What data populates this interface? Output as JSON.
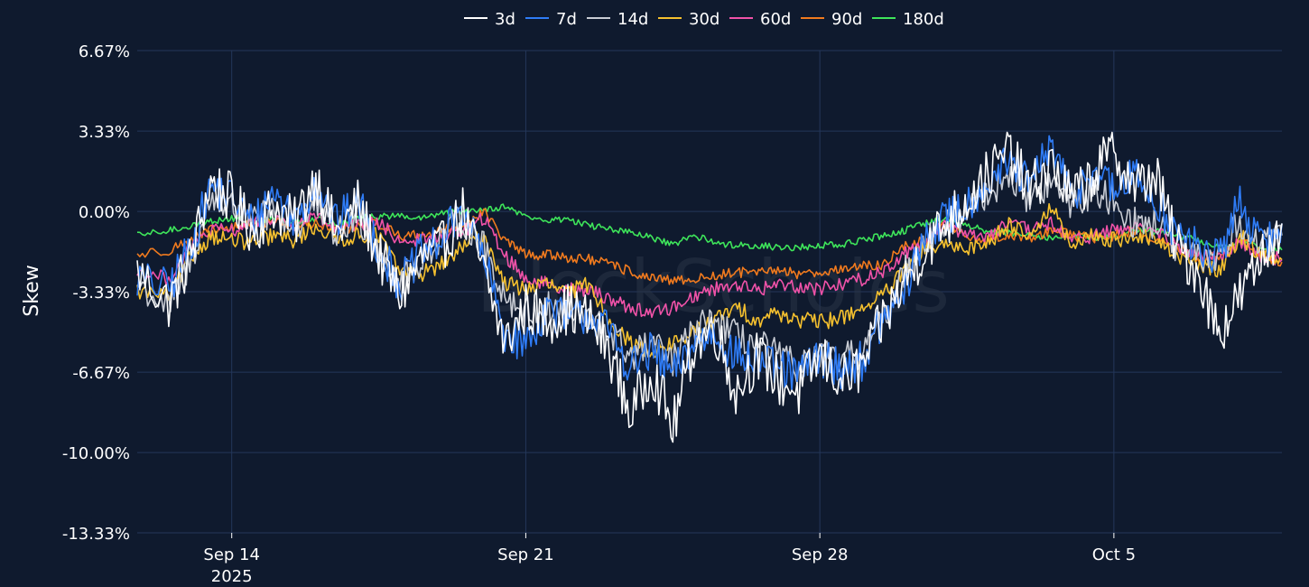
{
  "watermark": "BlockScholes",
  "chart_data": {
    "type": "line",
    "ylabel": "Skew",
    "y_ticks": [
      6.67,
      3.33,
      0,
      -3.33,
      -6.67,
      -10,
      -13.33
    ],
    "y_tick_labels": [
      "6.67%",
      "3.33%",
      "0.00%",
      "-3.33%",
      "-6.67%",
      "-10.00%",
      "-13.33%"
    ],
    "ylim": [
      -13.33,
      6.67
    ],
    "x_range": [
      "2025-09-11T18:00",
      "2025-10-09T00:00"
    ],
    "x_ticks": [
      "2025-09-14",
      "2025-09-21",
      "2025-09-28",
      "2025-10-05"
    ],
    "x_tick_labels": [
      "Sep 14",
      "Sep 21",
      "Sep 28",
      "Oct 5"
    ],
    "x_tick_sublabels": [
      "2025",
      "",
      "",
      ""
    ],
    "grid": true,
    "legend_position": "top-center",
    "x": [
      "2025-09-11T18:00",
      "2025-09-12T12:00",
      "2025-09-13T00:00",
      "2025-09-13T12:00",
      "2025-09-14T00:00",
      "2025-09-14T12:00",
      "2025-09-15T00:00",
      "2025-09-15T12:00",
      "2025-09-16T00:00",
      "2025-09-16T12:00",
      "2025-09-17T00:00",
      "2025-09-17T12:00",
      "2025-09-18T00:00",
      "2025-09-18T12:00",
      "2025-09-19T00:00",
      "2025-09-19T12:00",
      "2025-09-20T00:00",
      "2025-09-20T12:00",
      "2025-09-21T00:00",
      "2025-09-21T12:00",
      "2025-09-22T00:00",
      "2025-09-22T12:00",
      "2025-09-23T00:00",
      "2025-09-23T12:00",
      "2025-09-24T00:00",
      "2025-09-24T12:00",
      "2025-09-25T00:00",
      "2025-09-25T12:00",
      "2025-09-26T00:00",
      "2025-09-26T12:00",
      "2025-09-27T00:00",
      "2025-09-27T12:00",
      "2025-09-28T00:00",
      "2025-09-28T12:00",
      "2025-09-29T00:00",
      "2025-09-29T12:00",
      "2025-09-30T00:00",
      "2025-09-30T12:00",
      "2025-10-01T00:00",
      "2025-10-01T12:00",
      "2025-10-02T00:00",
      "2025-10-02T12:00",
      "2025-10-03T00:00",
      "2025-10-03T12:00",
      "2025-10-04T00:00",
      "2025-10-04T12:00",
      "2025-10-05T00:00",
      "2025-10-05T12:00",
      "2025-10-06T00:00",
      "2025-10-06T12:00",
      "2025-10-07T00:00",
      "2025-10-07T12:00",
      "2025-10-08T00:00",
      "2025-10-08T12:00",
      "2025-10-09T00:00"
    ],
    "series": [
      {
        "name": "3d",
        "color": "#ffffff",
        "values": [
          -2.5,
          -3.8,
          -2.0,
          1.2,
          0.5,
          -0.8,
          0.2,
          -0.5,
          1.5,
          -1.0,
          0.3,
          -1.8,
          -3.5,
          -2.0,
          -1.5,
          0.0,
          -2.5,
          -5.5,
          -4.0,
          -4.5,
          -4.0,
          -4.5,
          -5.8,
          -8.5,
          -6.5,
          -9.0,
          -5.5,
          -4.8,
          -7.5,
          -6.0,
          -7.0,
          -7.5,
          -6.0,
          -7.0,
          -6.5,
          -4.5,
          -3.0,
          -1.5,
          -0.5,
          0.5,
          1.5,
          2.5,
          0.8,
          2.0,
          0.5,
          1.5,
          2.5,
          1.0,
          1.5,
          -1.5,
          -2.5,
          -5.0,
          -3.5,
          -2.0,
          -0.5
        ]
      },
      {
        "name": "7d",
        "color": "#2f7cf6",
        "values": [
          -2.8,
          -3.2,
          -1.5,
          1.0,
          0.6,
          -0.5,
          0.8,
          -0.3,
          1.2,
          -0.5,
          0.5,
          -1.5,
          -3.0,
          -1.8,
          -1.2,
          0.2,
          -2.0,
          -5.0,
          -5.5,
          -4.0,
          -4.5,
          -4.2,
          -5.0,
          -6.5,
          -5.8,
          -6.8,
          -5.5,
          -5.0,
          -6.0,
          -6.2,
          -6.5,
          -6.8,
          -6.0,
          -6.5,
          -6.2,
          -4.5,
          -3.5,
          -1.0,
          -0.3,
          0.3,
          1.2,
          2.0,
          1.0,
          2.8,
          0.5,
          1.8,
          0.8,
          1.5,
          0.5,
          -1.0,
          -1.5,
          -2.0,
          0.5,
          -1.5,
          -0.5
        ]
      },
      {
        "name": "14d",
        "color": "#c8ccd4",
        "values": [
          -3.0,
          -4.0,
          -2.2,
          0.5,
          0.2,
          -0.5,
          0.0,
          -0.8,
          0.3,
          -1.0,
          -0.2,
          -1.5,
          -3.0,
          -2.0,
          -1.0,
          -0.3,
          -1.5,
          -3.5,
          -4.2,
          -4.0,
          -4.2,
          -4.5,
          -5.0,
          -6.0,
          -5.5,
          -6.2,
          -5.0,
          -4.5,
          -5.2,
          -5.5,
          -6.0,
          -6.5,
          -6.0,
          -6.2,
          -5.8,
          -4.5,
          -2.5,
          -1.2,
          -0.5,
          0.0,
          0.8,
          1.5,
          0.5,
          1.2,
          0.3,
          0.8,
          0.5,
          -0.5,
          -0.5,
          -1.5,
          -2.0,
          -1.8,
          -0.5,
          -1.5,
          -1.0
        ]
      },
      {
        "name": "30d",
        "color": "#f5c02e",
        "values": [
          -3.3,
          -3.5,
          -2.0,
          -1.0,
          -1.2,
          -1.3,
          -1.0,
          -1.2,
          -0.6,
          -1.2,
          -1.0,
          -1.0,
          -2.5,
          -2.6,
          -2.2,
          -1.5,
          -1.0,
          -3.0,
          -3.2,
          -3.0,
          -3.4,
          -3.0,
          -4.5,
          -5.5,
          -5.8,
          -5.5,
          -5.0,
          -4.5,
          -4.0,
          -4.5,
          -4.2,
          -4.5,
          -4.6,
          -4.4,
          -4.0,
          -3.5,
          -2.5,
          -1.5,
          -1.5,
          -1.5,
          -1.3,
          -0.5,
          -1.0,
          0.2,
          -1.5,
          -1.0,
          -1.2,
          -1.0,
          -1.2,
          -1.8,
          -2.2,
          -2.5,
          -1.0,
          -1.8,
          -2.0
        ]
      },
      {
        "name": "60d",
        "color": "#f052a8",
        "values": [
          -2.5,
          -2.8,
          -1.5,
          -0.8,
          -0.8,
          -0.5,
          -0.3,
          -0.6,
          -0.2,
          -0.8,
          -0.6,
          -0.5,
          -1.2,
          -1.2,
          -1.0,
          -0.8,
          -0.3,
          -1.8,
          -2.8,
          -3.0,
          -3.2,
          -3.3,
          -3.6,
          -4.0,
          -4.2,
          -4.0,
          -3.5,
          -3.2,
          -3.0,
          -3.3,
          -3.0,
          -3.1,
          -3.2,
          -3.0,
          -2.8,
          -2.5,
          -1.8,
          -1.2,
          -0.5,
          -1.0,
          -1.0,
          -0.5,
          -0.8,
          -0.5,
          -1.2,
          -1.0,
          -0.8,
          -0.6,
          -0.8,
          -1.5,
          -1.8,
          -2.0,
          -1.2,
          -1.8,
          -2.0
        ]
      },
      {
        "name": "90d",
        "color": "#f07a1e",
        "values": [
          -1.8,
          -1.6,
          -1.2,
          -0.8,
          -0.7,
          -0.5,
          -0.4,
          -0.6,
          -0.5,
          -0.8,
          -0.6,
          -0.5,
          -1.0,
          -1.0,
          -0.8,
          -0.6,
          0.0,
          -1.2,
          -1.8,
          -1.8,
          -1.9,
          -2.0,
          -2.2,
          -2.5,
          -2.8,
          -2.9,
          -2.8,
          -2.7,
          -2.5,
          -2.6,
          -2.4,
          -2.6,
          -2.5,
          -2.4,
          -2.3,
          -2.2,
          -1.5,
          -1.2,
          -0.5,
          -1.0,
          -1.2,
          -1.0,
          -1.1,
          -0.8,
          -1.0,
          -1.1,
          -1.0,
          -0.8,
          -1.2,
          -1.5,
          -2.0,
          -1.8,
          -1.2,
          -1.8,
          -2.1
        ]
      },
      {
        "name": "180d",
        "color": "#3ee55a",
        "values": [
          -1.0,
          -0.8,
          -0.6,
          -0.4,
          -0.3,
          -0.4,
          -0.3,
          -0.4,
          -0.3,
          -0.5,
          -0.3,
          -0.2,
          -0.2,
          -0.3,
          -0.1,
          0.0,
          0.1,
          0.2,
          -0.2,
          -0.4,
          -0.3,
          -0.6,
          -0.7,
          -0.9,
          -1.1,
          -1.4,
          -1.0,
          -1.3,
          -1.4,
          -1.4,
          -1.5,
          -1.5,
          -1.4,
          -1.4,
          -1.2,
          -1.0,
          -0.8,
          -0.5,
          -0.3,
          -0.6,
          -0.8,
          -0.9,
          -1.0,
          -1.1,
          -1.0,
          -1.1,
          -1.0,
          -0.8,
          -0.8,
          -1.0,
          -1.2,
          -1.5,
          -1.2,
          -1.5,
          -1.6
        ]
      }
    ]
  }
}
